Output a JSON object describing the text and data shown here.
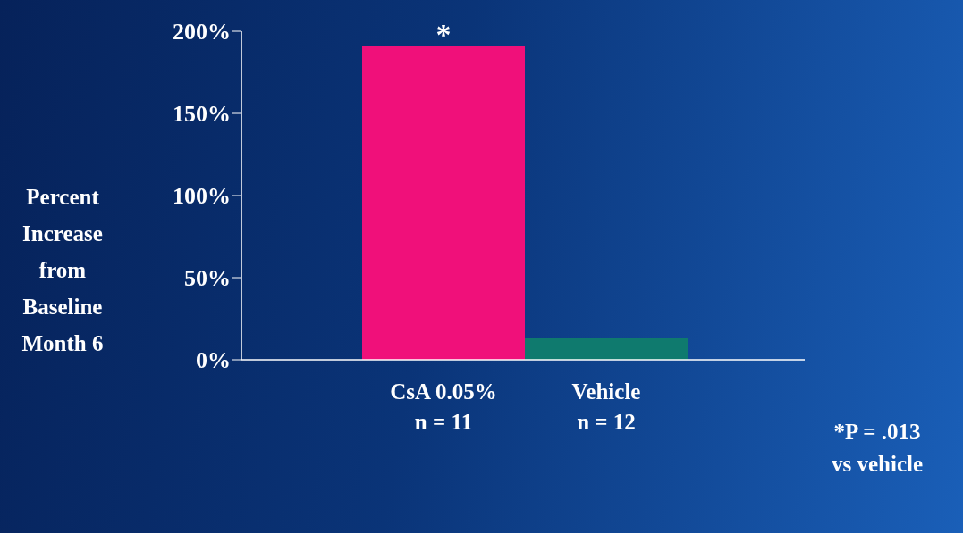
{
  "chart_data": {
    "type": "bar",
    "ylabel": "Percent\nIncrease\nfrom\nBaseline\nMonth 6",
    "categories": [
      "CsA 0.05%\nn = 11",
      "Vehicle\nn = 12"
    ],
    "values": [
      191,
      13
    ],
    "colors": [
      "#f0107a",
      "#0f7a6e"
    ],
    "ylim": [
      0,
      200
    ],
    "yticks": [
      {
        "value": 0,
        "label": "0%"
      },
      {
        "value": 50,
        "label": "50%"
      },
      {
        "value": 100,
        "label": "100%"
      },
      {
        "value": 150,
        "label": "150%"
      },
      {
        "value": 200,
        "label": "200%"
      }
    ],
    "grid": false,
    "legend": false,
    "annotations": [
      {
        "text": "*",
        "x": "CsA 0.05%\nn = 11",
        "y": 191
      },
      "*P = .013\nvs vehicle"
    ]
  }
}
